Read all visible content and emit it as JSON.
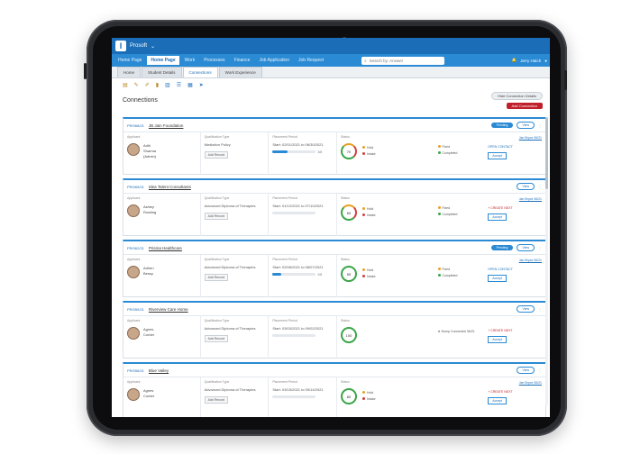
{
  "app": {
    "name": "Prosoft"
  },
  "nav": {
    "items": [
      "Home Page",
      "Home Page",
      "Work",
      "Processes",
      "Finance",
      "Job Application",
      "Job Request"
    ],
    "active_index": 1,
    "search_placeholder": "Search by: Answer",
    "user": "Jerry Hatch"
  },
  "tabs": {
    "items": [
      "Home",
      "Student Details",
      "Connections",
      "Work Experience"
    ],
    "active_index": 2
  },
  "page": {
    "title": "Connections",
    "hide_button": "Hide Connection Details",
    "add_button": "Add Connection"
  },
  "cards": [
    {
      "code": "PR/068/21",
      "name": "JB Jain Foundation",
      "status": "Pending",
      "person": [
        "Aditi",
        "Sharma",
        "(Admin)"
      ],
      "school": "Mediation Policy",
      "school_btn": "Add Record",
      "progress_text": "Start: 02/01/2021 to 06/30/2021",
      "progress": 0.35,
      "progress_count": "3/8",
      "ring_value": "70",
      "ring_type": "mixed",
      "legend_left": [
        "Hold",
        "Intake"
      ],
      "legend_right": [
        "Fixed",
        "Completed"
      ],
      "link": "Jan Bryce 06/21",
      "action_red": "",
      "action_blue": "OPEN CONTACT",
      "action_box": "Accept"
    },
    {
      "code": "PR/065/21",
      "name": "Idea Talent Consultants",
      "status": "",
      "person": [
        "Ashley",
        "Rowling",
        ""
      ],
      "school": "Advanced Diploma of Therapies",
      "school_btn": "Add Record",
      "progress_text": "Start: 01/12/2021 to 07/10/2021",
      "progress": 0.0,
      "progress_count": "",
      "ring_value": "60",
      "ring_type": "mixed",
      "legend_left": [
        "Hold",
        "Intake"
      ],
      "legend_right": [
        "Fixed",
        "Completed"
      ],
      "link": "Jan Bryce 06/21",
      "action_red": "+ CREATE NEXT",
      "action_blue": "",
      "action_box": "Accept"
    },
    {
      "code": "PR/062/21",
      "name": "Prisma Healthcare",
      "status": "Pending",
      "person": [
        "Adrien",
        "Bessy",
        ""
      ],
      "school": "Advanced Diploma of Therapies",
      "school_btn": "Add Record",
      "progress_text": "Start: 02/08/2021 to 08/07/2021",
      "progress": 0.2,
      "progress_count": "2/8",
      "ring_value": "55",
      "ring_type": "ok",
      "legend_left": [
        "Hold",
        "Intake"
      ],
      "legend_right": [
        "Fixed",
        "Completed"
      ],
      "link": "Jan Bryce 06/21",
      "action_red": "",
      "action_blue": "OPEN CONTACT",
      "action_box": "Accept"
    },
    {
      "code": "PR/059/21",
      "name": "Riverview Care Home",
      "status": "",
      "person": [
        "Agnes",
        "Corber",
        ""
      ],
      "school": "Advanced Diploma of Therapies",
      "school_btn": "Add Record",
      "progress_text": "Start: 03/03/2021 to 09/02/2021",
      "progress": 0.0,
      "progress_count": "",
      "ring_value": "100",
      "ring_type": "ok",
      "legend_left": [],
      "legend_right": [],
      "center_msg": "Dump Connected 06/21",
      "link": "",
      "action_red": "+ CREATE NEXT",
      "action_blue": "",
      "action_box": "Accept"
    },
    {
      "code": "PR/056/21",
      "name": "Blue Valley",
      "status": "",
      "person": [
        "Agnes",
        "Corber",
        ""
      ],
      "school": "Advanced Diploma of Therapies",
      "school_btn": "Add Record",
      "progress_text": "Start: 03/15/2021 to 09/14/2021",
      "progress": 0.0,
      "progress_count": "",
      "ring_value": "80",
      "ring_type": "ok",
      "legend_left": [
        "Hold",
        "Intake"
      ],
      "legend_right": [],
      "link": "Jan Bryce 06/21",
      "action_red": "+ CREATE NEXT",
      "action_blue": "",
      "action_box": "Accept"
    }
  ],
  "labels": {
    "col_person": "Applicant",
    "col_school": "Qualification Type",
    "col_progress": "Placement Period",
    "col_score": "Status"
  },
  "colors": {
    "brand": "#1b6db7",
    "nav": "#2a8ad4",
    "danger": "#c0202a",
    "ok": "#3aa548",
    "warn": "#e8a026"
  },
  "icons": [
    "folder-icon",
    "edit-icon",
    "pencil-icon",
    "lock-icon",
    "chart-icon",
    "list-icon",
    "grid-icon",
    "arrow-icon"
  ]
}
